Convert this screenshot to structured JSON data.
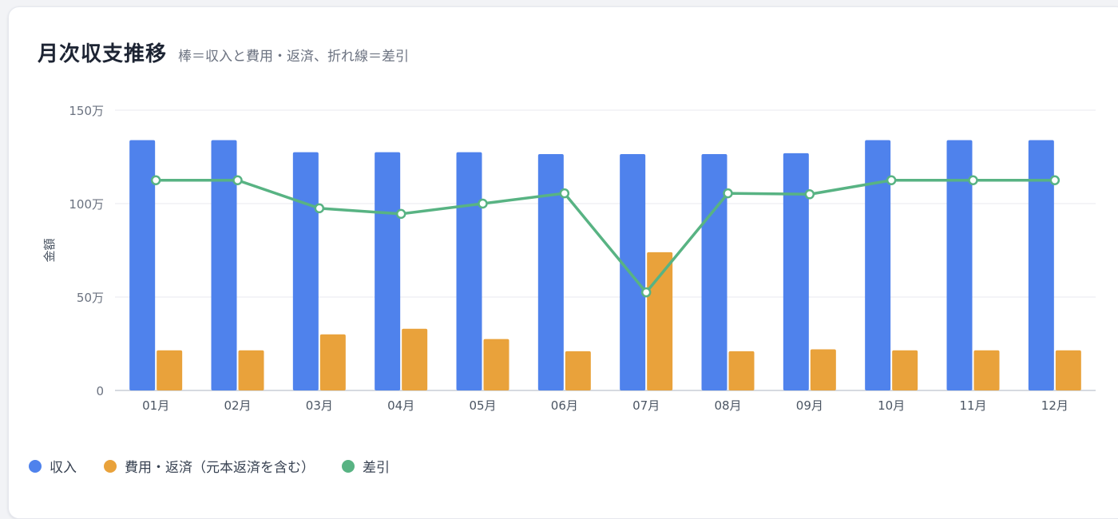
{
  "header": {
    "title": "月次収支推移",
    "subtitle": "棒＝収入と費用・返済、折れ線＝差引"
  },
  "chart_data": {
    "type": "bar",
    "ylabel": "金額",
    "ylim": [
      0,
      1500000
    ],
    "yticks": [
      {
        "value": 0,
        "label": "0"
      },
      {
        "value": 500000,
        "label": "50万"
      },
      {
        "value": 1000000,
        "label": "100万"
      },
      {
        "value": 1500000,
        "label": "150万"
      }
    ],
    "grid": true,
    "legend_position": "bottom-left",
    "categories": [
      "01月",
      "02月",
      "03月",
      "04月",
      "05月",
      "06月",
      "07月",
      "08月",
      "09月",
      "10月",
      "11月",
      "12月"
    ],
    "series": [
      {
        "name": "収入",
        "type": "bar",
        "color": "#4f82ec",
        "values": [
          1340000,
          1340000,
          1275000,
          1275000,
          1275000,
          1265000,
          1265000,
          1265000,
          1270000,
          1340000,
          1340000,
          1340000
        ]
      },
      {
        "name": "費用・返済（元本返済を含む）",
        "type": "bar",
        "color": "#e9a23b",
        "values": [
          215000,
          215000,
          300000,
          330000,
          275000,
          210000,
          740000,
          210000,
          220000,
          215000,
          215000,
          215000
        ]
      },
      {
        "name": "差引",
        "type": "line",
        "color": "#58b383",
        "values": [
          1125000,
          1125000,
          975000,
          945000,
          1000000,
          1055000,
          525000,
          1055000,
          1050000,
          1125000,
          1125000,
          1125000
        ]
      }
    ]
  }
}
